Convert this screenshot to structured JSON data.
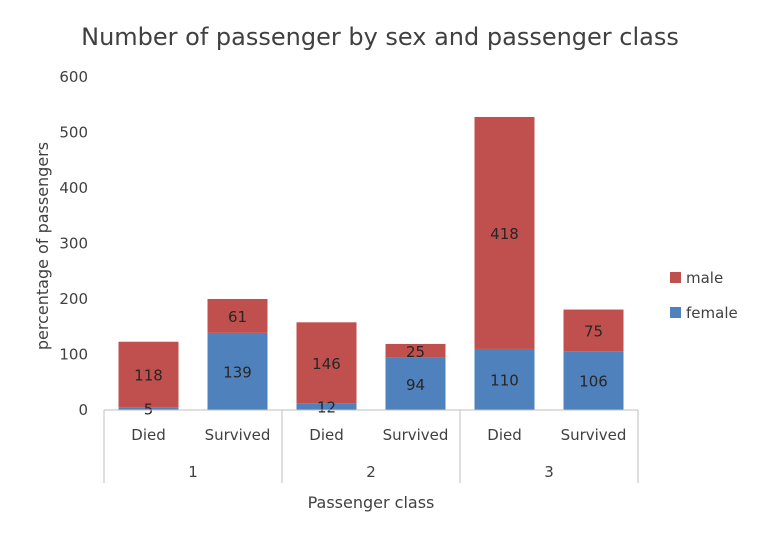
{
  "chart_data": {
    "type": "bar",
    "stacked": true,
    "title": "Number of passenger by sex and passenger class",
    "xlabel": "Passenger class",
    "ylabel": "percentage of passengers",
    "ylim": [
      0,
      600
    ],
    "yticks": [
      "0",
      "100",
      "200",
      "300",
      "400",
      "500",
      "600"
    ],
    "groups": [
      "1",
      "2",
      "3"
    ],
    "categories": [
      "Died",
      "Survived",
      "Died",
      "Survived",
      "Died",
      "Survived"
    ],
    "series": [
      {
        "name": "female",
        "color": "#4f81bd",
        "values": [
          5,
          139,
          12,
          94,
          110,
          106
        ]
      },
      {
        "name": "male",
        "color": "#c0504d",
        "values": [
          118,
          61,
          146,
          25,
          418,
          75
        ]
      }
    ],
    "legend_position": "right",
    "grid": false
  }
}
